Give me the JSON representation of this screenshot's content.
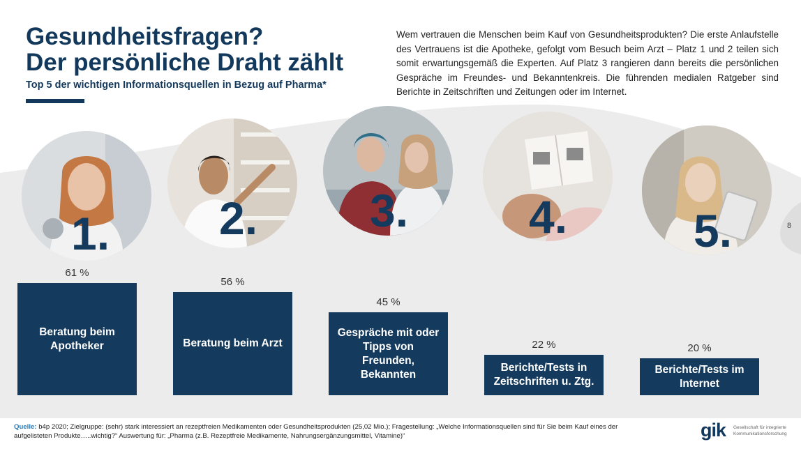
{
  "header": {
    "title_line1": "Gesundheitsfragen?",
    "title_line2": "Der persönliche Draht zählt",
    "subtitle": "Top 5 der wichtigen Informationsquellen in Bezug auf Pharma*"
  },
  "intro_text": "Wem vertrauen die Menschen beim Kauf von Gesundheitsprodukten? Die erste Anlaufstelle des Vertrauens ist die Apotheke, gefolgt vom Besuch beim Arzt – Platz 1 und 2 teilen sich somit erwartungsgemäß die Experten. Auf Platz 3 rangieren dann bereits die persönlichen Gespräche im Freundes- und Bekanntenkreis. Die führenden medialen Ratgeber sind Berichte in Zeitschriften und Zeitungen oder im Internet.",
  "page_number": "8",
  "chart_data": {
    "type": "bar",
    "categories": [
      "Beratung beim Apotheker",
      "Beratung beim Arzt",
      "Gespräche mit oder Tipps von Freunden, Bekannten",
      "Berichte/Tests in Zeitschriften u. Ztg.",
      "Berichte/Tests im Internet"
    ],
    "values": [
      61,
      56,
      45,
      22,
      20
    ],
    "value_labels": [
      "61 %",
      "56 %",
      "45 %",
      "22 %",
      "20 %"
    ],
    "ranks": [
      "1.",
      "2.",
      "3.",
      "4.",
      "5."
    ],
    "unit": "%",
    "ylim": [
      0,
      61
    ],
    "bar_color": "#143a5d",
    "grid": false
  },
  "footer": {
    "source_label": "Quelle:",
    "source_text": " b4p 2020; Zielgruppe: (sehr) stark interessiert an rezeptfreien Medikamenten oder Gesundheitsprodukten (25,02 Mio.); Fragestellung: „Welche Informationsquellen sind für Sie beim Kauf eines der aufgelisteten Produkte…..wichtig?“ Auswertung für: „Pharma (z.B. Rezeptfreie Medikamente, Nahrungsergänzungsmittel, Vitamine)“"
  },
  "logo": {
    "name": "gik",
    "tagline": "Gesellschaft für integrierte Kommunikationsforschung"
  },
  "colors": {
    "brand": "#12385c",
    "source_label": "#2a7ab8",
    "background_wave": "#ececec"
  }
}
